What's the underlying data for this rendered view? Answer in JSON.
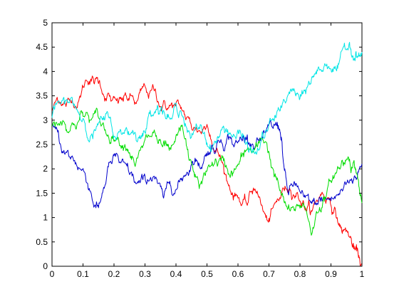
{
  "chart_data": {
    "type": "line",
    "title": "",
    "xlabel": "",
    "ylabel": "",
    "xlim": [
      0,
      1
    ],
    "ylim": [
      0,
      5
    ],
    "grid": false,
    "legend": "none",
    "x_ticks": [
      "0",
      "0.1",
      "0.2",
      "0.3",
      "0.4",
      "0.5",
      "0.6",
      "0.7",
      "0.8",
      "0.9",
      "1"
    ],
    "y_ticks": [
      "0",
      "0.5",
      "1",
      "1.5",
      "2",
      "2.5",
      "3",
      "3.5",
      "4",
      "4.5",
      "5"
    ],
    "series": [
      {
        "color": "#ff0000",
        "x": [
          0,
          0.03,
          0.06,
          0.09,
          0.12,
          0.15,
          0.18,
          0.21,
          0.24,
          0.27,
          0.3,
          0.33,
          0.36,
          0.39,
          0.42,
          0.45,
          0.48,
          0.51,
          0.54,
          0.57,
          0.6,
          0.63,
          0.66,
          0.69,
          0.72,
          0.75,
          0.78,
          0.81,
          0.84,
          0.87,
          0.9,
          0.93,
          0.96,
          0.98,
          1.0
        ],
        "y": [
          3.2,
          3.3,
          3.4,
          3.5,
          3.8,
          3.75,
          3.55,
          3.45,
          3.5,
          3.35,
          3.7,
          3.6,
          3.4,
          3.3,
          3.2,
          2.85,
          2.75,
          2.7,
          2.25,
          1.65,
          1.4,
          1.25,
          1.5,
          1.0,
          1.3,
          1.55,
          1.45,
          1.35,
          1.15,
          1.5,
          1.25,
          0.85,
          0.6,
          0.4,
          0.05
        ]
      },
      {
        "color": "#0000cc",
        "x": [
          0,
          0.03,
          0.06,
          0.09,
          0.12,
          0.15,
          0.18,
          0.21,
          0.24,
          0.27,
          0.3,
          0.33,
          0.36,
          0.39,
          0.42,
          0.45,
          0.48,
          0.51,
          0.54,
          0.57,
          0.6,
          0.63,
          0.66,
          0.69,
          0.72,
          0.74,
          0.76,
          0.79,
          0.82,
          0.85,
          0.88,
          0.91,
          0.94,
          0.97,
          1.0
        ],
        "y": [
          2.9,
          2.4,
          2.2,
          2.0,
          1.6,
          1.2,
          2.05,
          2.3,
          2.1,
          1.7,
          1.85,
          1.85,
          1.4,
          1.45,
          1.75,
          2.1,
          2.0,
          2.3,
          2.55,
          2.6,
          2.55,
          2.7,
          2.6,
          2.75,
          2.9,
          2.65,
          1.55,
          1.65,
          1.45,
          1.3,
          1.4,
          1.4,
          1.6,
          1.7,
          2.1
        ]
      },
      {
        "color": "#00dd00",
        "x": [
          0,
          0.03,
          0.06,
          0.09,
          0.12,
          0.15,
          0.18,
          0.21,
          0.24,
          0.27,
          0.3,
          0.33,
          0.36,
          0.39,
          0.42,
          0.45,
          0.48,
          0.51,
          0.54,
          0.57,
          0.6,
          0.63,
          0.66,
          0.69,
          0.72,
          0.75,
          0.78,
          0.81,
          0.84,
          0.87,
          0.9,
          0.93,
          0.96,
          0.98,
          1.0
        ],
        "y": [
          2.9,
          2.95,
          2.85,
          3.1,
          2.95,
          3.05,
          2.7,
          2.6,
          2.4,
          2.1,
          2.6,
          2.8,
          2.55,
          2.5,
          2.9,
          2.1,
          1.7,
          2.05,
          2.2,
          1.9,
          2.1,
          2.4,
          2.5,
          2.55,
          1.9,
          1.3,
          1.2,
          1.3,
          0.7,
          1.2,
          1.75,
          2.0,
          2.2,
          2.0,
          1.3
        ]
      },
      {
        "color": "#00e5e5",
        "x": [
          0,
          0.03,
          0.06,
          0.09,
          0.12,
          0.15,
          0.18,
          0.21,
          0.24,
          0.27,
          0.3,
          0.33,
          0.36,
          0.39,
          0.42,
          0.45,
          0.48,
          0.51,
          0.54,
          0.57,
          0.6,
          0.63,
          0.66,
          0.69,
          0.72,
          0.75,
          0.78,
          0.81,
          0.84,
          0.87,
          0.9,
          0.93,
          0.96,
          0.98,
          1.0
        ],
        "y": [
          3.05,
          3.35,
          3.45,
          3.1,
          2.55,
          2.95,
          3.15,
          2.65,
          2.85,
          2.7,
          2.75,
          3.15,
          3.2,
          3.1,
          3.1,
          2.65,
          2.9,
          2.5,
          2.65,
          2.7,
          2.8,
          2.55,
          2.3,
          2.8,
          3.1,
          3.4,
          3.65,
          3.55,
          3.9,
          4.0,
          4.05,
          4.3,
          4.6,
          4.4,
          4.4
        ]
      }
    ]
  }
}
